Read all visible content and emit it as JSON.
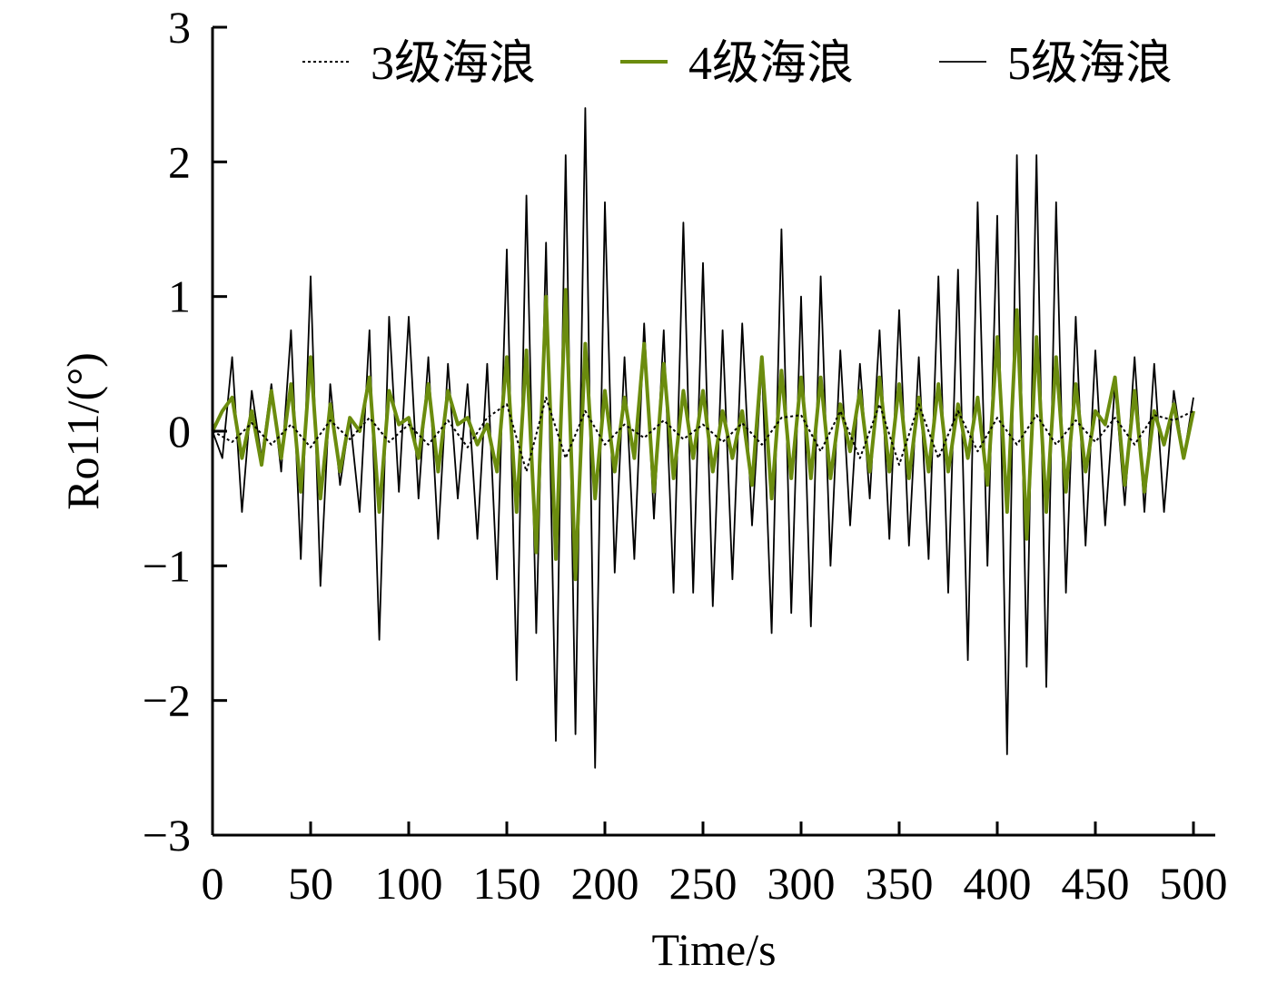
{
  "chart_data": {
    "type": "line",
    "xlabel": "Time/s",
    "ylabel": "Ro11/(°)",
    "xlim": [
      0,
      500
    ],
    "ylim": [
      -3,
      3
    ],
    "xticks": [
      0,
      50,
      100,
      150,
      200,
      250,
      300,
      350,
      400,
      450,
      500
    ],
    "yticks": [
      -3,
      -2,
      -1,
      0,
      1,
      2,
      3
    ],
    "ytick_labels": [
      "−3",
      "−2",
      "−1",
      "0",
      "1",
      "2",
      "3"
    ],
    "grid": false,
    "legend_position": "top",
    "series": [
      {
        "name": "3级海浪",
        "color": "#000000",
        "style": "dotted",
        "x": [
          0,
          10,
          20,
          30,
          40,
          50,
          60,
          70,
          80,
          90,
          100,
          110,
          120,
          130,
          140,
          150,
          160,
          170,
          180,
          190,
          200,
          210,
          220,
          230,
          240,
          250,
          260,
          270,
          280,
          290,
          300,
          310,
          320,
          330,
          340,
          350,
          360,
          370,
          380,
          390,
          400,
          410,
          420,
          430,
          440,
          450,
          460,
          470,
          480,
          490,
          500
        ],
        "y": [
          0.0,
          -0.08,
          0.06,
          -0.1,
          0.05,
          -0.12,
          0.08,
          -0.06,
          0.1,
          -0.08,
          0.05,
          -0.1,
          0.08,
          -0.12,
          0.1,
          0.2,
          -0.3,
          0.25,
          -0.2,
          0.15,
          -0.1,
          0.05,
          -0.05,
          0.08,
          -0.06,
          0.05,
          -0.08,
          0.06,
          -0.1,
          0.1,
          0.12,
          -0.15,
          0.15,
          -0.2,
          0.2,
          -0.25,
          0.2,
          -0.2,
          0.15,
          -0.15,
          0.1,
          -0.1,
          0.12,
          -0.1,
          0.08,
          -0.08,
          0.1,
          -0.1,
          0.12,
          0.08,
          0.15
        ]
      },
      {
        "name": "4级海浪",
        "color": "#6b8c0e",
        "style": "solid",
        "x": [
          0,
          5,
          10,
          15,
          20,
          25,
          30,
          35,
          40,
          45,
          50,
          55,
          60,
          65,
          70,
          75,
          80,
          85,
          90,
          95,
          100,
          105,
          110,
          115,
          120,
          125,
          130,
          135,
          140,
          145,
          150,
          155,
          160,
          165,
          170,
          175,
          180,
          185,
          190,
          195,
          200,
          205,
          210,
          215,
          220,
          225,
          230,
          235,
          240,
          245,
          250,
          255,
          260,
          265,
          270,
          275,
          280,
          285,
          290,
          295,
          300,
          305,
          310,
          315,
          320,
          325,
          330,
          335,
          340,
          345,
          350,
          355,
          360,
          365,
          370,
          375,
          380,
          385,
          390,
          395,
          400,
          405,
          410,
          415,
          420,
          425,
          430,
          435,
          440,
          445,
          450,
          455,
          460,
          465,
          470,
          475,
          480,
          485,
          490,
          495,
          500
        ],
        "y": [
          0.0,
          0.15,
          0.25,
          -0.2,
          0.15,
          -0.25,
          0.3,
          -0.2,
          0.35,
          -0.45,
          0.55,
          -0.5,
          0.2,
          -0.3,
          0.1,
          0.0,
          0.4,
          -0.6,
          0.3,
          0.05,
          0.1,
          -0.2,
          0.35,
          -0.3,
          0.3,
          0.05,
          0.1,
          -0.1,
          0.05,
          -0.3,
          0.55,
          -0.6,
          0.6,
          -0.9,
          1.0,
          -0.95,
          1.05,
          -1.1,
          0.65,
          -0.5,
          0.3,
          -0.3,
          0.25,
          -0.2,
          0.65,
          -0.45,
          0.5,
          -0.35,
          0.3,
          -0.2,
          0.3,
          -0.3,
          0.15,
          -0.2,
          0.15,
          -0.4,
          0.55,
          -0.5,
          0.45,
          -0.35,
          0.4,
          -0.35,
          0.4,
          -0.35,
          0.2,
          -0.15,
          0.3,
          -0.3,
          0.4,
          -0.3,
          0.35,
          -0.35,
          0.25,
          -0.3,
          0.35,
          -0.3,
          0.2,
          -0.2,
          0.25,
          -0.4,
          0.7,
          -0.6,
          0.9,
          -0.8,
          0.7,
          -0.6,
          0.55,
          -0.45,
          0.35,
          -0.3,
          0.15,
          0.05,
          0.4,
          -0.4,
          0.3,
          -0.45,
          0.15,
          -0.1,
          0.2,
          -0.2,
          0.15
        ]
      },
      {
        "name": "5级海浪",
        "color": "#000000",
        "style": "solid-thin",
        "x": [
          0,
          5,
          10,
          15,
          20,
          25,
          30,
          35,
          40,
          45,
          50,
          55,
          60,
          65,
          70,
          75,
          80,
          85,
          90,
          95,
          100,
          105,
          110,
          115,
          120,
          125,
          130,
          135,
          140,
          145,
          150,
          155,
          160,
          165,
          170,
          175,
          180,
          185,
          190,
          195,
          200,
          205,
          210,
          215,
          220,
          225,
          230,
          235,
          240,
          245,
          250,
          255,
          260,
          265,
          270,
          275,
          280,
          285,
          290,
          295,
          300,
          305,
          310,
          315,
          320,
          325,
          330,
          335,
          340,
          345,
          350,
          355,
          360,
          365,
          370,
          375,
          380,
          385,
          390,
          395,
          400,
          405,
          410,
          415,
          420,
          425,
          430,
          435,
          440,
          445,
          450,
          455,
          460,
          465,
          470,
          475,
          480,
          485,
          490,
          495,
          500
        ],
        "y": [
          0.0,
          -0.2,
          0.55,
          -0.6,
          0.3,
          -0.2,
          0.35,
          -0.3,
          0.75,
          -0.95,
          1.15,
          -1.15,
          0.35,
          -0.4,
          0.1,
          -0.6,
          0.75,
          -1.55,
          0.85,
          -0.45,
          0.85,
          -0.5,
          0.55,
          -0.8,
          0.5,
          -0.5,
          0.35,
          -0.8,
          0.5,
          -1.1,
          1.35,
          -1.85,
          1.75,
          -1.5,
          1.4,
          -2.3,
          2.05,
          -2.25,
          2.4,
          -2.5,
          1.7,
          -1.05,
          0.55,
          -0.95,
          0.8,
          -0.65,
          0.75,
          -1.2,
          1.55,
          -1.2,
          1.25,
          -1.3,
          0.75,
          -1.1,
          0.8,
          -0.7,
          0.5,
          -1.5,
          1.5,
          -1.35,
          1.0,
          -1.45,
          1.15,
          -1.0,
          0.6,
          -0.7,
          0.5,
          -0.5,
          0.75,
          -0.8,
          0.9,
          -0.85,
          0.55,
          -0.95,
          1.15,
          -1.2,
          1.2,
          -1.7,
          1.7,
          -1.0,
          1.6,
          -2.4,
          2.05,
          -1.75,
          2.05,
          -1.9,
          1.7,
          -1.2,
          0.85,
          -0.85,
          0.6,
          -0.7,
          0.35,
          -0.55,
          0.55,
          -0.6,
          0.5,
          -0.6,
          0.3,
          -0.2,
          0.25
        ]
      }
    ]
  }
}
